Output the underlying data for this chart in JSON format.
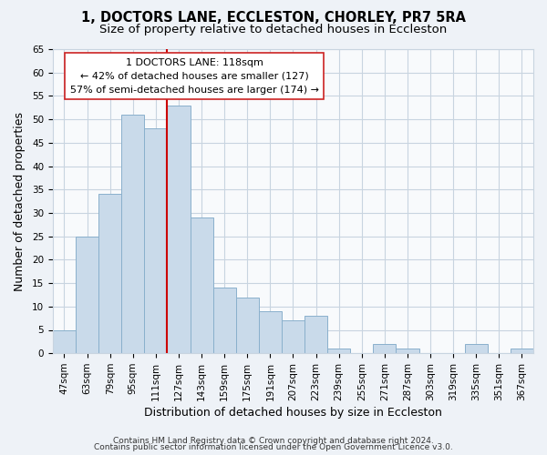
{
  "title": "1, DOCTORS LANE, ECCLESTON, CHORLEY, PR7 5RA",
  "subtitle": "Size of property relative to detached houses in Eccleston",
  "xlabel": "Distribution of detached houses by size in Eccleston",
  "ylabel": "Number of detached properties",
  "bar_color": "#c9daea",
  "bar_edge_color": "#8ab0cc",
  "vline_color": "#cc0000",
  "vline_x": 4.5,
  "categories": [
    "47sqm",
    "63sqm",
    "79sqm",
    "95sqm",
    "111sqm",
    "127sqm",
    "143sqm",
    "159sqm",
    "175sqm",
    "191sqm",
    "207sqm",
    "223sqm",
    "239sqm",
    "255sqm",
    "271sqm",
    "287sqm",
    "303sqm",
    "319sqm",
    "335sqm",
    "351sqm",
    "367sqm"
  ],
  "values": [
    5,
    25,
    34,
    51,
    48,
    53,
    29,
    14,
    12,
    9,
    7,
    8,
    1,
    0,
    2,
    1,
    0,
    0,
    2,
    0,
    1
  ],
  "ylim": [
    0,
    65
  ],
  "yticks": [
    0,
    5,
    10,
    15,
    20,
    25,
    30,
    35,
    40,
    45,
    50,
    55,
    60,
    65
  ],
  "annotation_line1": "1 DOCTORS LANE: 118sqm",
  "annotation_line2": "← 42% of detached houses are smaller (127)",
  "annotation_line3": "57% of semi-detached houses are larger (174) →",
  "footer_line1": "Contains HM Land Registry data © Crown copyright and database right 2024.",
  "footer_line2": "Contains public sector information licensed under the Open Government Licence v3.0.",
  "background_color": "#eef2f7",
  "plot_bg_color": "#f8fafc",
  "grid_color": "#c8d4e0",
  "title_fontsize": 10.5,
  "subtitle_fontsize": 9.5,
  "label_fontsize": 9,
  "tick_fontsize": 7.5,
  "footer_fontsize": 6.5
}
